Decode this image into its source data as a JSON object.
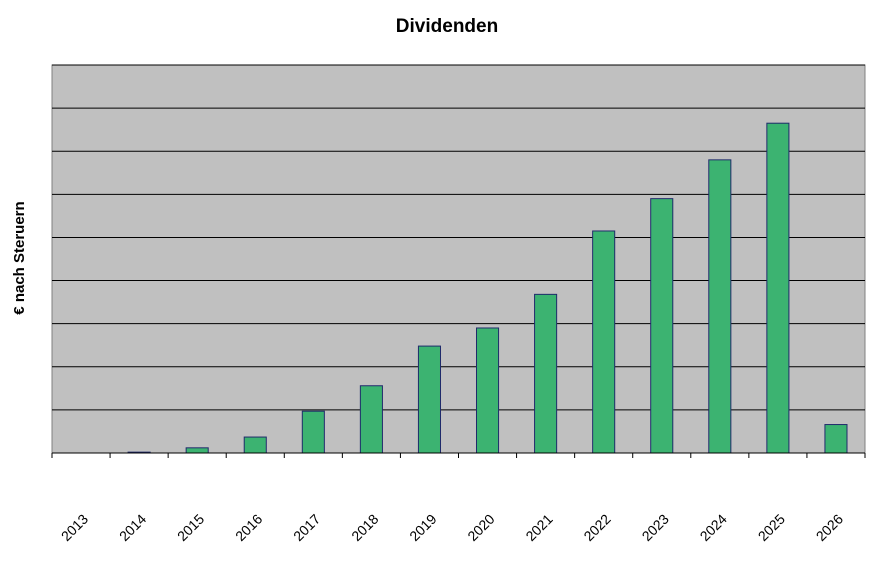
{
  "chart_data": {
    "type": "bar",
    "title": "Dividenden",
    "xlabel": "",
    "ylabel": "€ nach Steruern",
    "categories": [
      "2013",
      "2014",
      "2015",
      "2016",
      "2017",
      "2018",
      "2019",
      "2020",
      "2021",
      "2022",
      "2023",
      "2024",
      "2025",
      "2026"
    ],
    "values": [
      0,
      0.02,
      0.12,
      0.37,
      0.97,
      1.56,
      2.48,
      2.9,
      3.68,
      5.15,
      5.9,
      6.8,
      7.65,
      0.66
    ],
    "ylim": [
      0,
      9
    ],
    "y_tick_labels_shown": false,
    "grid": true,
    "legend": "none",
    "colors": {
      "bar_fill": "#3cb371",
      "bar_stroke": "#1f2a6b",
      "plot_background": "#c0c0c0",
      "gridline": "#000000"
    }
  }
}
